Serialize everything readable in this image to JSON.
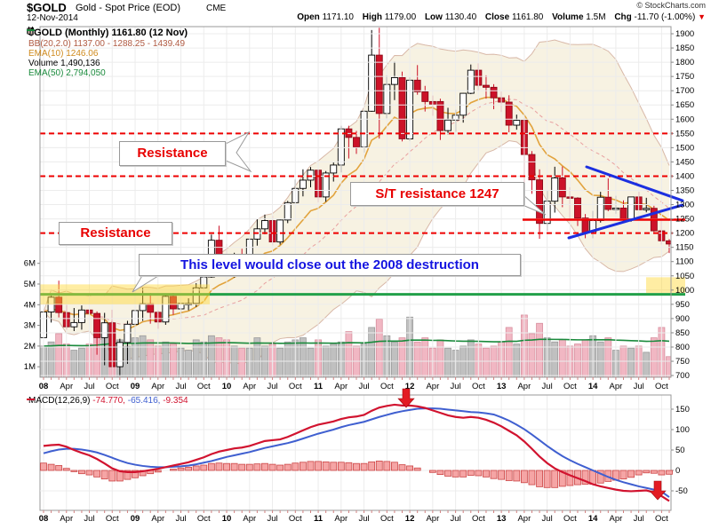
{
  "header": {
    "symbol": "$GOLD",
    "title": "Gold - Spot Price (EOD)",
    "exchange": "CME",
    "copyright": "© StockCharts.com",
    "date": "12-Nov-2014",
    "quote": {
      "open_label": "Open",
      "open": "1171.10",
      "high_label": "High",
      "high": "1179.00",
      "low_label": "Low",
      "low": "1130.40",
      "close_label": "Close",
      "close": "1161.80",
      "volume_label": "Volume",
      "volume": "1.5M",
      "chg_label": "Chg",
      "chg": "-11.70 (-1.00%)",
      "chg_direction": "down"
    }
  },
  "legend": {
    "main": "$GOLD (Monthly) 1161.80 (12 Nov)",
    "bb": "BB(20,2.0) 1137.00 - 1288.25 - 1439.49",
    "ema10": "EMA(10) 1246.06",
    "volume": "Volume 1,490,136",
    "ema50": "EMA(50) 2,794,050"
  },
  "macd_legend": {
    "name": "MACD(12,26,9)",
    "macd_value": "-74.770,",
    "signal_value": "-65.416,",
    "hist_value": "-9.354"
  },
  "annotations": {
    "resistance_upper": "Resistance",
    "resistance_lower": "Resistance",
    "st_resistance": "S/T resistance 1247",
    "blue_note": "This level would close out the 2008 destruction"
  },
  "colors": {
    "accent_red": "#ee0000",
    "candle_down": "#cc1228",
    "candle_up_fill": "#ffffff",
    "candle_outline": "#000000",
    "volume_up": "#c0c0c0",
    "volume_up_edge": "#9a9a9a",
    "volume_down": "#f1b7c3",
    "volume_down_edge": "#d88f9e",
    "ema10": "#e2a33d",
    "vol_ema50": "#1a8a3c",
    "green_line": "#22a049",
    "bb_fill": "#f7f2e2",
    "bb_edge": "#d8b8a8",
    "bb_mid": "#e8a0a0",
    "macd_line": "#d1132f",
    "signal_line": "#3f5fd0",
    "hist_fill": "#f5a5a5",
    "hist_edge": "#cc4444",
    "wedge_blue": "#1b2fe0",
    "highlight_yellow": "rgba(255,214,51,0.45)",
    "grid": "#ececec",
    "border": "#999999",
    "month_tick": "#d08080",
    "arrow_red": "#e31b23"
  },
  "chart_data": [
    {
      "type": "candlestick",
      "title": "$GOLD (Monthly)",
      "timeframe": "Monthly, Jan 2008 - Nov 2014",
      "x_quarter_labels": [
        "08",
        "Apr",
        "Jul",
        "Oct",
        "09",
        "Apr",
        "Jul",
        "Oct",
        "10",
        "Apr",
        "Jul",
        "Oct",
        "11",
        "Apr",
        "Jul",
        "Oct",
        "12",
        "Apr",
        "Jul",
        "Oct",
        "13",
        "Apr",
        "Jul",
        "Oct",
        "14",
        "Apr",
        "Jul",
        "Oct"
      ],
      "year_label_indices": [
        0,
        4,
        8,
        12,
        16,
        20,
        24
      ],
      "ylim": [
        694,
        1925
      ],
      "y_tick_min": 700,
      "y_tick_max": 1900,
      "y_tick_step": 50,
      "volume_axis_labels": [
        "1M",
        "2M",
        "3M",
        "4M",
        "5M",
        "6M"
      ],
      "open": [
        833,
        923,
        975,
        921,
        871,
        886,
        930,
        918,
        833,
        885,
        731,
        816,
        880,
        928,
        952,
        922,
        888,
        978,
        934,
        953,
        953,
        1008,
        1046,
        1175,
        1096,
        1083,
        1118,
        1113,
        1179,
        1215,
        1244,
        1169,
        1246,
        1307,
        1357,
        1386,
        1421,
        1327,
        1411,
        1439,
        1566,
        1536,
        1502,
        1628,
        1825,
        1620,
        1722,
        1746,
        1531,
        1737,
        1696,
        1662,
        1662,
        1560,
        1597,
        1614,
        1691,
        1772,
        1719,
        1712,
        1675,
        1660,
        1579,
        1596,
        1476,
        1387,
        1234,
        1312,
        1394,
        1327,
        1323,
        1253,
        1202,
        1244,
        1326,
        1283,
        1288,
        1250,
        1327,
        1282,
        1287,
        1208,
        1173
      ],
      "high": [
        936,
        980,
        1033,
        948,
        937,
        946,
        988,
        925,
        920,
        931,
        829,
        892,
        928,
        1007,
        990,
        928,
        982,
        990,
        956,
        971,
        1024,
        1070,
        1195,
        1226,
        1162,
        1131,
        1145,
        1181,
        1249,
        1265,
        1261,
        1248,
        1313,
        1388,
        1424,
        1432,
        1424,
        1418,
        1448,
        1577,
        1577,
        1559,
        1632,
        1913,
        1921,
        1754,
        1802,
        1767,
        1747,
        1790,
        1717,
        1683,
        1672,
        1640,
        1633,
        1692,
        1792,
        1796,
        1754,
        1723,
        1697,
        1684,
        1616,
        1604,
        1488,
        1424,
        1348,
        1433,
        1434,
        1361,
        1326,
        1267,
        1278,
        1345,
        1392,
        1331,
        1315,
        1327,
        1345,
        1324,
        1296,
        1256,
        1179
      ],
      "low": [
        820,
        886,
        904,
        861,
        856,
        861,
        908,
        773,
        736,
        681,
        698,
        741,
        802,
        892,
        882,
        864,
        878,
        913,
        905,
        929,
        941,
        1004,
        1043,
        1075,
        1074,
        1044,
        1084,
        1110,
        1156,
        1196,
        1157,
        1160,
        1235,
        1306,
        1329,
        1361,
        1308,
        1310,
        1381,
        1413,
        1462,
        1478,
        1483,
        1626,
        1532,
        1603,
        1667,
        1522,
        1523,
        1686,
        1627,
        1612,
        1527,
        1547,
        1556,
        1588,
        1688,
        1698,
        1672,
        1635,
        1625,
        1554,
        1563,
        1321,
        1338,
        1180,
        1208,
        1272,
        1291,
        1251,
        1225,
        1182,
        1182,
        1237,
        1277,
        1268,
        1241,
        1240,
        1281,
        1273,
        1204,
        1160,
        1130
      ],
      "close": [
        923,
        975,
        921,
        871,
        886,
        930,
        918,
        833,
        885,
        731,
        816,
        880,
        928,
        952,
        922,
        888,
        978,
        934,
        953,
        953,
        1008,
        1046,
        1175,
        1096,
        1083,
        1118,
        1113,
        1179,
        1215,
        1244,
        1169,
        1246,
        1307,
        1357,
        1386,
        1421,
        1327,
        1411,
        1439,
        1566,
        1536,
        1502,
        1628,
        1825,
        1620,
        1722,
        1746,
        1531,
        1737,
        1696,
        1662,
        1651,
        1560,
        1597,
        1614,
        1691,
        1772,
        1719,
        1712,
        1675,
        1660,
        1579,
        1596,
        1476,
        1387,
        1234,
        1312,
        1394,
        1327,
        1323,
        1253,
        1202,
        1244,
        1326,
        1283,
        1288,
        1250,
        1327,
        1282,
        1287,
        1208,
        1173,
        1161.8
      ],
      "volume_m": [
        2.0,
        2.2,
        2.6,
        2.1,
        1.8,
        1.9,
        2.1,
        2.7,
        2.9,
        3.1,
        2.3,
        2.0,
        2.4,
        2.5,
        2.3,
        2.0,
        2.2,
        2.1,
        1.9,
        1.8,
        2.3,
        2.2,
        2.5,
        2.4,
        2.3,
        2.0,
        1.9,
        1.9,
        2.4,
        2.0,
        2.1,
        1.9,
        2.2,
        2.3,
        2.4,
        1.9,
        2.3,
        2.0,
        2.1,
        2.2,
        2.7,
        2.0,
        2.1,
        2.9,
        3.3,
        2.5,
        2.2,
        2.4,
        3.4,
        2.2,
        2.4,
        1.9,
        2.3,
        1.9,
        1.8,
        2.0,
        2.3,
        2.1,
        1.9,
        2.0,
        2.2,
        2.9,
        2.1,
        3.5,
        2.6,
        3.1,
        2.4,
        2.2,
        2.3,
        2.0,
        2.1,
        2.3,
        2.5,
        2.2,
        2.4,
        1.8,
        2.0,
        1.9,
        2.0,
        1.7,
        2.4,
        2.9,
        1.49
      ],
      "overlays": {
        "bands": "BB(20,2.0)",
        "price_ema": "EMA(10)",
        "volume_ema": "EMA(50)"
      },
      "annotation_levels": {
        "dashed_resistance": [
          1550,
          1400,
          1200
        ],
        "solid_resistance": 1247,
        "green_support": 985,
        "yellow_band_left_price": [
          950,
          1020
        ],
        "yellow_band_right_price": [
          990,
          1045
        ]
      }
    },
    {
      "type": "line",
      "title": "MACD(12,26,9)",
      "ylim": [
        -85,
        185
      ],
      "y_ticks": [
        150,
        100,
        50,
        0,
        -50
      ],
      "series": [
        {
          "name": "MACD",
          "values": [
            60,
            62,
            63,
            58,
            50,
            43,
            37,
            28,
            17,
            5,
            -2,
            -4,
            -4,
            -2,
            1,
            4,
            8,
            12,
            16,
            20,
            26,
            32,
            40,
            46,
            50,
            54,
            56,
            60,
            66,
            72,
            74,
            76,
            82,
            90,
            98,
            106,
            112,
            116,
            120,
            126,
            130,
            132,
            136,
            146,
            154,
            158,
            161,
            159,
            159,
            157,
            153,
            147,
            141,
            135,
            131,
            129,
            131,
            129,
            124,
            117,
            108,
            97,
            86,
            71,
            53,
            34,
            18,
            5,
            -4,
            -12,
            -19,
            -26,
            -34,
            -39,
            -43,
            -47,
            -50,
            -51,
            -50,
            -49,
            -54,
            -63,
            -74.77
          ]
        },
        {
          "name": "Signal",
          "values": [
            42,
            47,
            51,
            53,
            53,
            51,
            48,
            44,
            38,
            31,
            24,
            18,
            14,
            11,
            9,
            8,
            8,
            9,
            10,
            12,
            15,
            19,
            23,
            28,
            33,
            37,
            41,
            45,
            50,
            55,
            59,
            63,
            67,
            72,
            78,
            84,
            90,
            95,
            100,
            106,
            111,
            115,
            119,
            125,
            131,
            136,
            141,
            145,
            148,
            151,
            152,
            152,
            151,
            149,
            147,
            145,
            143,
            142,
            140,
            137,
            130,
            122,
            112,
            101,
            88,
            74,
            60,
            47,
            35,
            25,
            16,
            8,
            0,
            -8,
            -16,
            -23,
            -29,
            -34,
            -39,
            -43,
            -47,
            -52,
            -65.42
          ]
        }
      ],
      "histogram": "MACD minus Signal",
      "current": {
        "macd": -74.77,
        "signal": -65.416,
        "hist": -9.354
      }
    }
  ]
}
